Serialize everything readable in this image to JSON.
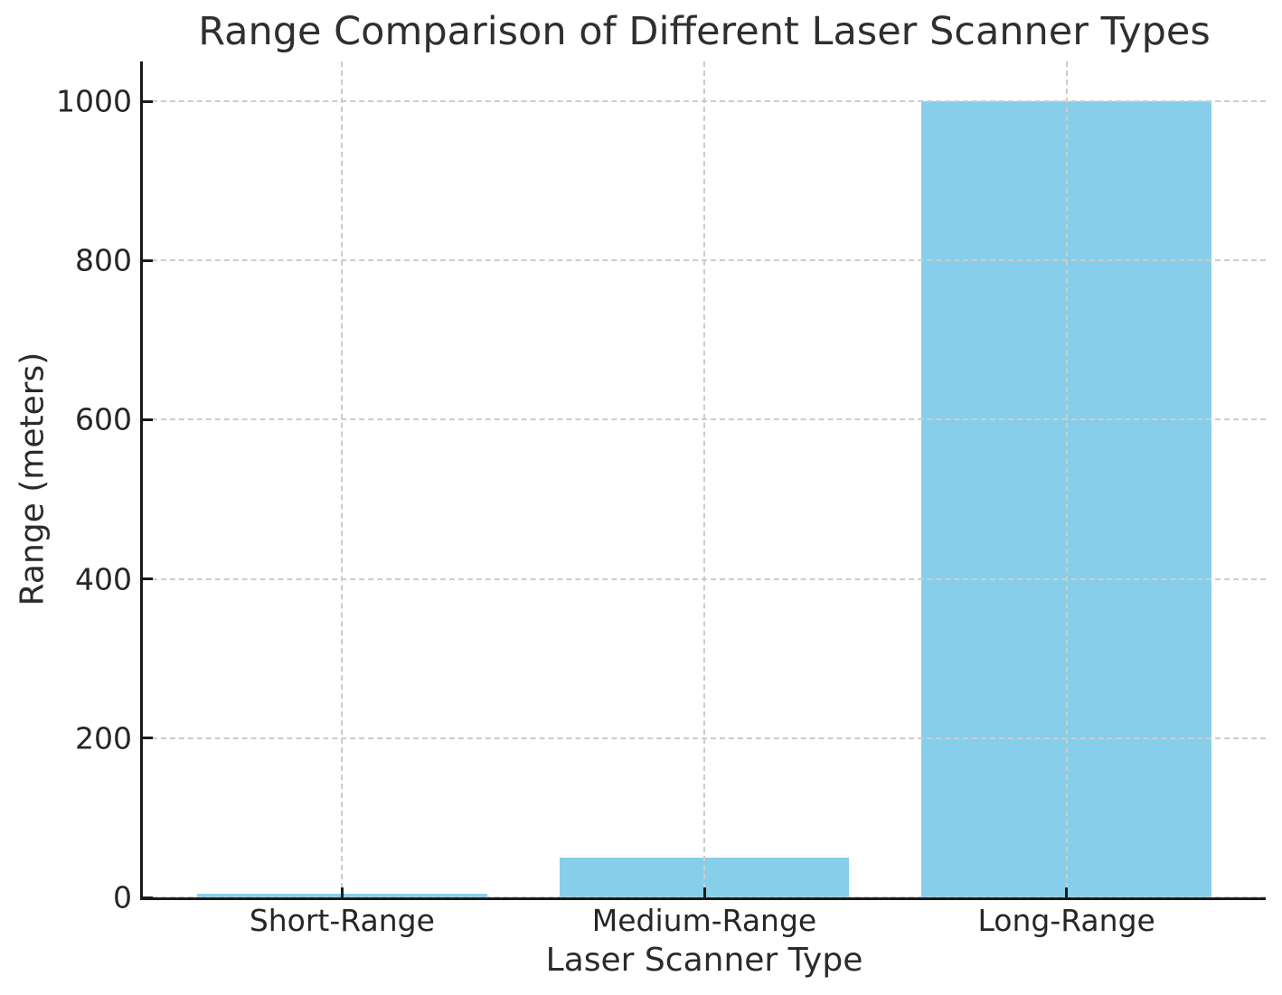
{
  "chart_data": {
    "type": "bar",
    "title": "Range Comparison of Different Laser Scanner Types",
    "xlabel": "Laser Scanner Type",
    "ylabel": "Range (meters)",
    "categories": [
      "Short-Range",
      "Medium-Range",
      "Long-Range"
    ],
    "values": [
      5,
      50,
      1000
    ],
    "ylim": [
      0,
      1050
    ],
    "yticks": [
      0,
      200,
      400,
      600,
      800,
      1000
    ],
    "bar_color": "#87CEEB",
    "bar_width_fraction": 0.8,
    "grid": "on",
    "grid_color": "#cccccc",
    "grid_style": "dashed",
    "axis_color": "#1a1a1a",
    "text_color": "#262626",
    "background_color": "#ffffff",
    "legend_position": "none"
  }
}
